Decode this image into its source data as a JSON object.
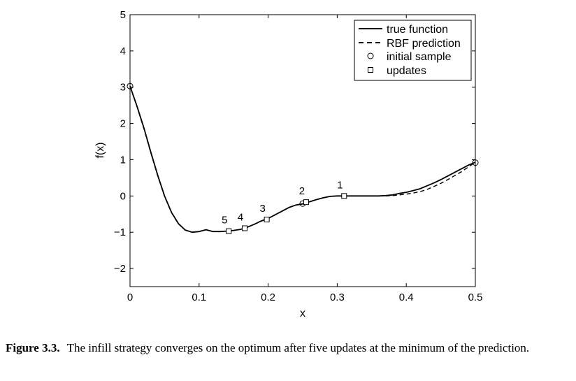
{
  "chart_data": {
    "type": "line",
    "xlabel": "x",
    "ylabel": "f(x)",
    "xlim": [
      0,
      0.5
    ],
    "ylim": [
      -2.5,
      5
    ],
    "xticks": [
      0,
      0.1,
      0.2,
      0.3,
      0.4,
      0.5
    ],
    "xtick_labels": [
      "0",
      "0.1",
      "0.2",
      "0.3",
      "0.4",
      "0.5"
    ],
    "yticks": [
      -2,
      -1,
      0,
      1,
      2,
      3,
      4,
      5
    ],
    "ytick_labels": [
      "−2",
      "−1",
      "0",
      "1",
      "2",
      "3",
      "4",
      "5"
    ],
    "grid": false,
    "legend_position": "top-right",
    "series": [
      {
        "name": "true function",
        "style": "solid",
        "x": [
          0,
          0.01,
          0.02,
          0.03,
          0.04,
          0.05,
          0.06,
          0.07,
          0.08,
          0.09,
          0.1,
          0.11,
          0.12,
          0.13,
          0.14,
          0.145,
          0.15,
          0.16,
          0.17,
          0.18,
          0.19,
          0.2,
          0.21,
          0.22,
          0.23,
          0.24,
          0.25,
          0.26,
          0.27,
          0.28,
          0.29,
          0.3,
          0.31,
          0.32,
          0.33,
          0.34,
          0.35,
          0.36,
          0.37,
          0.38,
          0.39,
          0.4,
          0.41,
          0.42,
          0.43,
          0.44,
          0.45,
          0.46,
          0.47,
          0.48,
          0.49,
          0.5
        ],
        "y": [
          3.03,
          2.48,
          1.88,
          1.22,
          0.58,
          0.0,
          -0.45,
          -0.76,
          -0.94,
          -1.0,
          -0.98,
          -0.93,
          -0.98,
          -0.98,
          -0.97,
          -0.96,
          -0.95,
          -0.92,
          -0.86,
          -0.78,
          -0.69,
          -0.62,
          -0.52,
          -0.42,
          -0.32,
          -0.25,
          -0.22,
          -0.16,
          -0.1,
          -0.05,
          -0.01,
          0.0,
          0.0,
          0.0,
          0.0,
          0.0,
          0.0,
          0.0,
          0.01,
          0.03,
          0.07,
          0.1,
          0.15,
          0.2,
          0.28,
          0.36,
          0.45,
          0.55,
          0.65,
          0.75,
          0.85,
          0.93
        ]
      },
      {
        "name": "RBF prediction",
        "style": "dashed",
        "x": [
          0,
          0.01,
          0.02,
          0.03,
          0.04,
          0.05,
          0.06,
          0.07,
          0.08,
          0.09,
          0.1,
          0.11,
          0.12,
          0.13,
          0.14,
          0.145,
          0.15,
          0.16,
          0.17,
          0.18,
          0.19,
          0.2,
          0.21,
          0.22,
          0.23,
          0.24,
          0.25,
          0.26,
          0.27,
          0.28,
          0.29,
          0.3,
          0.31,
          0.32,
          0.33,
          0.34,
          0.35,
          0.36,
          0.37,
          0.38,
          0.39,
          0.4,
          0.41,
          0.42,
          0.43,
          0.44,
          0.45,
          0.46,
          0.47,
          0.48,
          0.49,
          0.5
        ],
        "y": [
          3.03,
          2.47,
          1.86,
          1.2,
          0.56,
          -0.01,
          -0.46,
          -0.77,
          -0.94,
          -1.0,
          -0.98,
          -0.93,
          -0.98,
          -0.98,
          -0.97,
          -0.96,
          -0.95,
          -0.92,
          -0.86,
          -0.78,
          -0.69,
          -0.62,
          -0.52,
          -0.42,
          -0.32,
          -0.25,
          -0.22,
          -0.16,
          -0.1,
          -0.05,
          -0.01,
          0.0,
          0.0,
          0.0,
          0.0,
          0.0,
          0.0,
          0.0,
          0.0,
          0.01,
          0.03,
          0.05,
          0.08,
          0.12,
          0.18,
          0.26,
          0.35,
          0.45,
          0.56,
          0.67,
          0.8,
          0.93
        ]
      }
    ],
    "initial_samples": {
      "name": "initial sample",
      "x": [
        0,
        0.25,
        0.5
      ],
      "y": [
        3.03,
        -0.21,
        0.92
      ]
    },
    "updates": {
      "name": "updates",
      "x": [
        0.31,
        0.255,
        0.198,
        0.166,
        0.143
      ],
      "y": [
        0.0,
        -0.17,
        -0.65,
        -0.89,
        -0.97
      ],
      "labels": [
        "1",
        "2",
        "3",
        "4",
        "5"
      ]
    }
  },
  "caption": {
    "label": "Figure 3.3.",
    "text": "The infill strategy converges on the optimum after five updates at the minimum of the prediction."
  }
}
